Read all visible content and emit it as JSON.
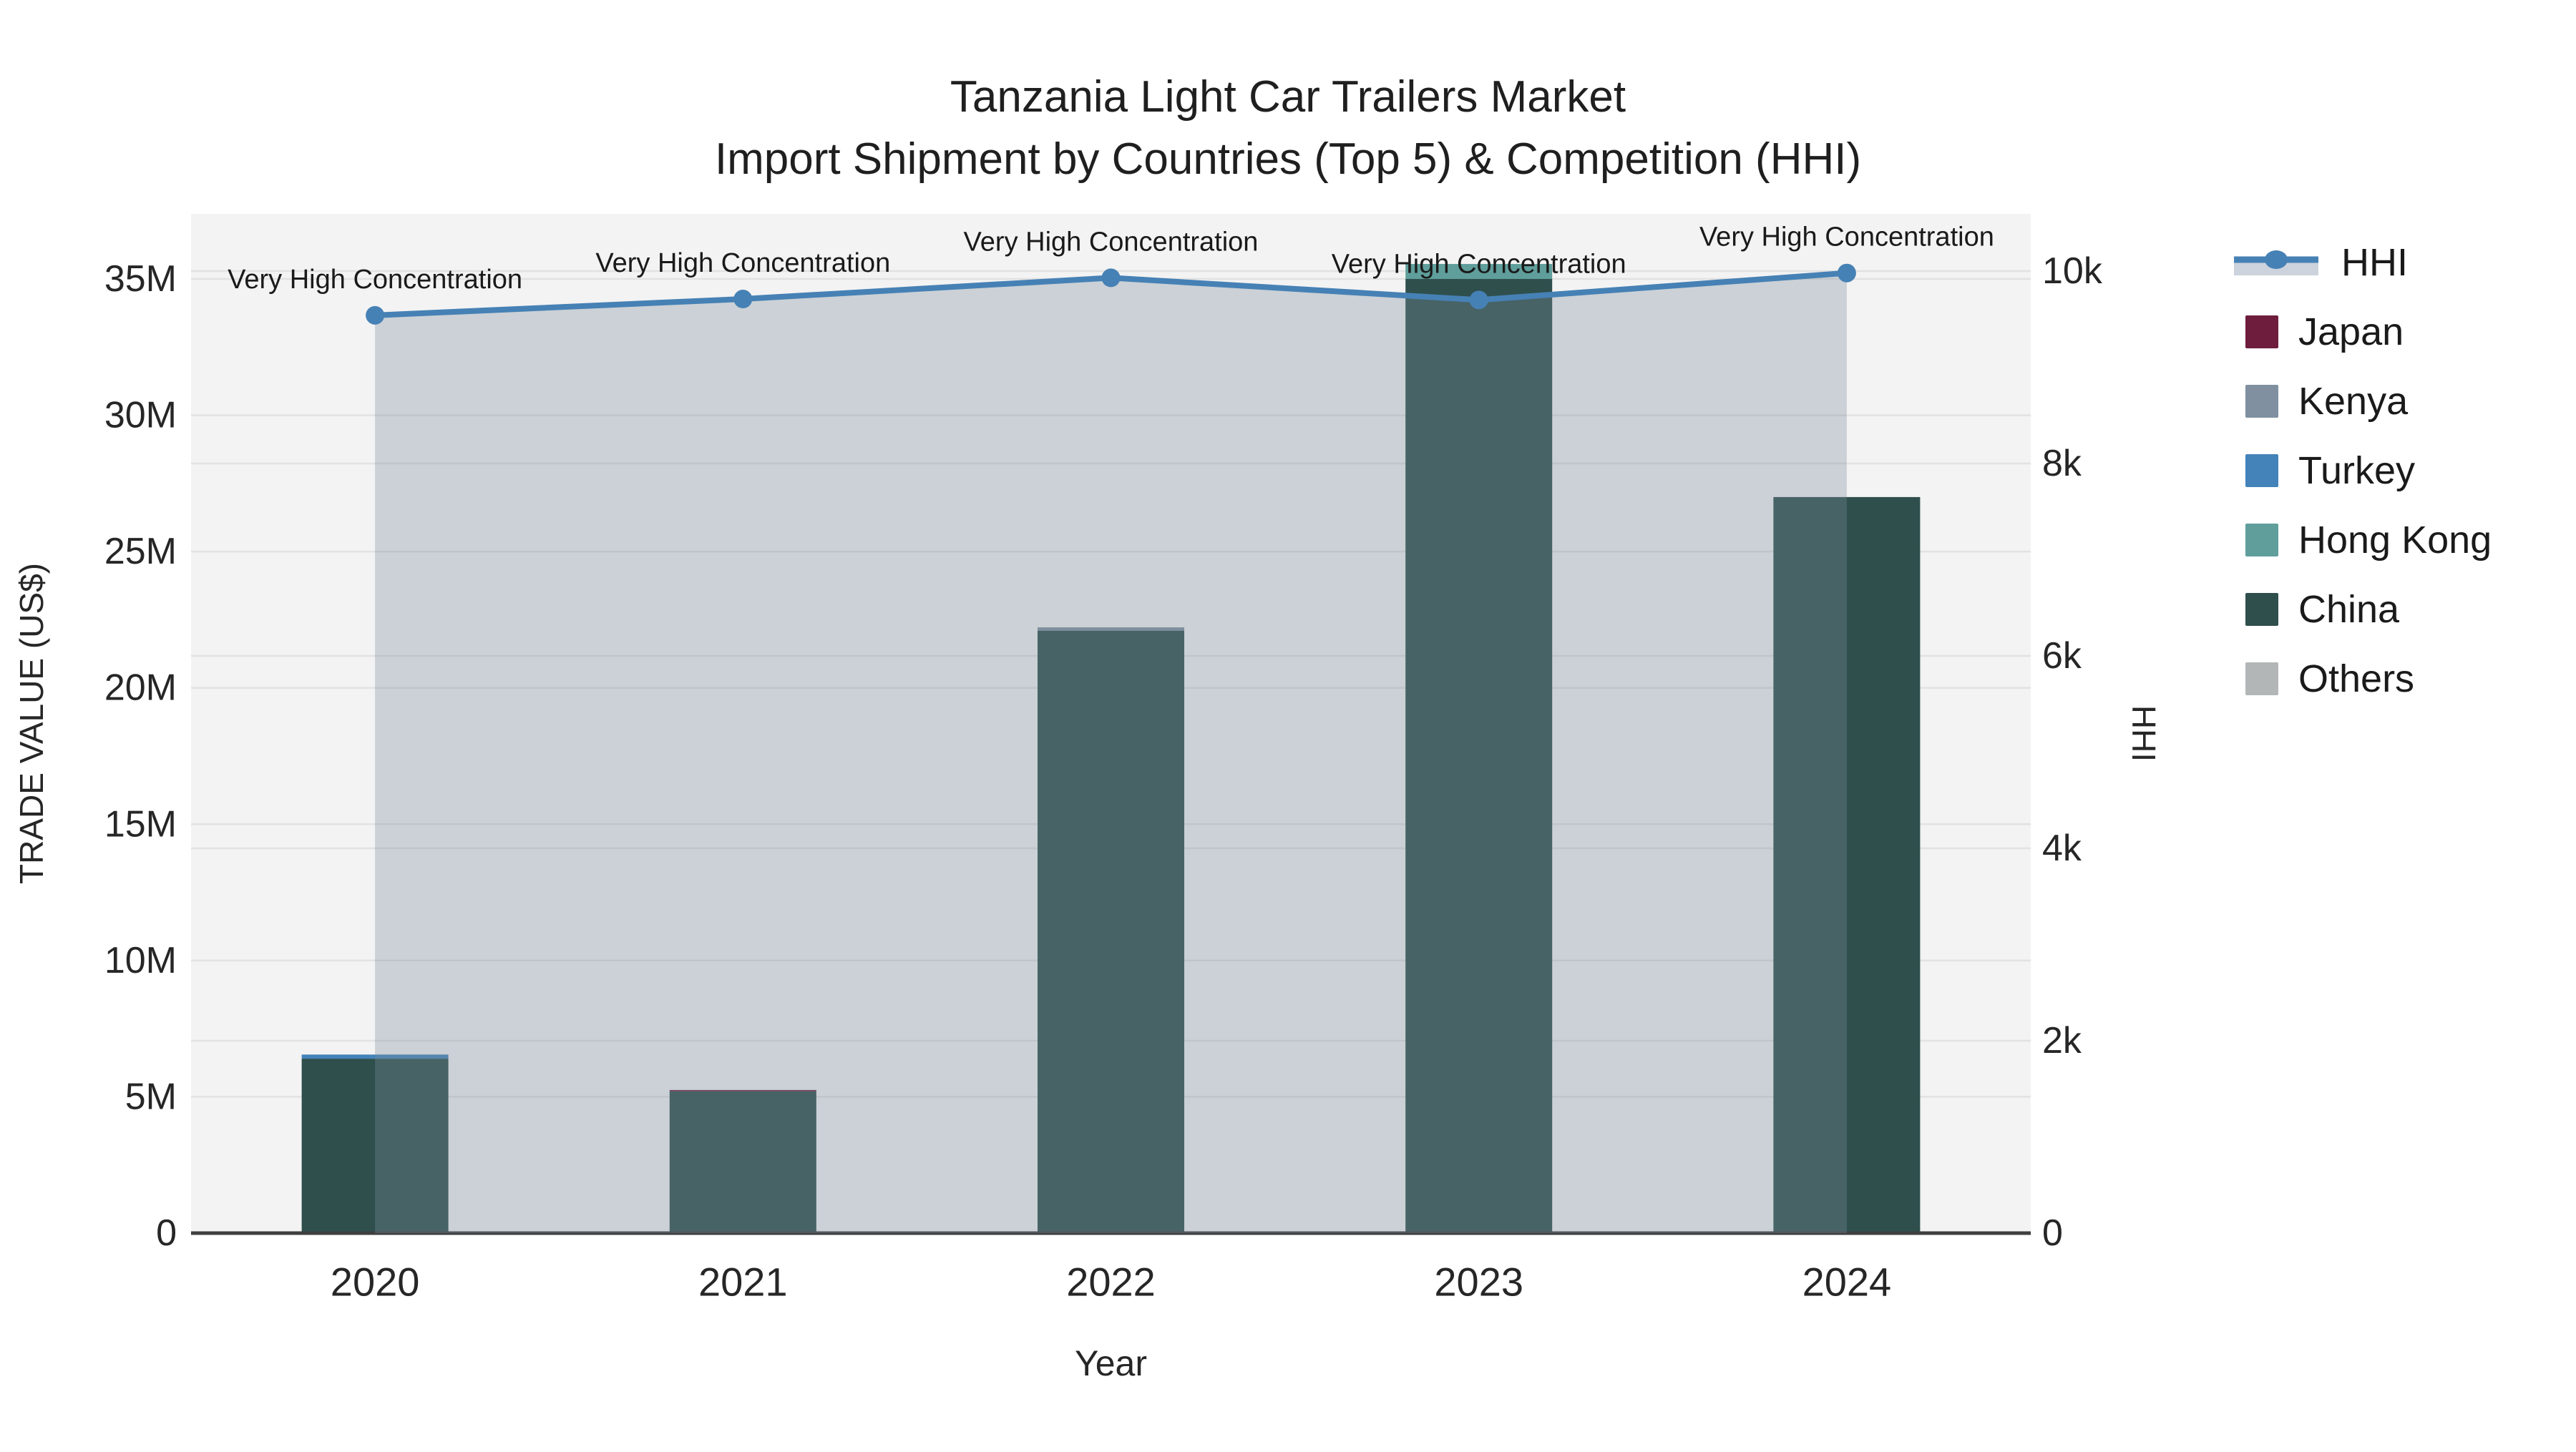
{
  "title": {
    "line1": "Tanzania Light Car Trailers Market",
    "line2": "Import Shipment by Countries (Top 5) & Competition (HHI)"
  },
  "colors": {
    "background": "#ffffff",
    "plot_bg": "#f3f3f3",
    "grid": "#e2e2e2",
    "axis_line": "#3f3f3f",
    "tick_text": "#262626",
    "annotation_text": "#1a1a1a",
    "hhi_line": "#4681b5",
    "hhi_fill": "rgba(120,140,155,0.33)",
    "hhi_band_swatch": "#ccd3dc"
  },
  "chart_data": {
    "type": "combo: stacked-bar + line(area) dual axis",
    "categories": [
      "2020",
      "2021",
      "2022",
      "2023",
      "2024"
    ],
    "bar_unit": "US$",
    "series": [
      {
        "name": "Japan",
        "color": "#6f1d3d",
        "values": [
          0,
          50000,
          0,
          0,
          0
        ]
      },
      {
        "name": "Kenya",
        "color": "#8090a0",
        "values": [
          0,
          0,
          120000,
          0,
          0
        ]
      },
      {
        "name": "Turkey",
        "color": "#4383b9",
        "values": [
          150000,
          0,
          0,
          0,
          0
        ]
      },
      {
        "name": "Hong Kong",
        "color": "#5f9e9b",
        "values": [
          0,
          0,
          0,
          550000,
          0
        ]
      },
      {
        "name": "China",
        "color": "#2f4f4d",
        "values": [
          6400000,
          5200000,
          22100000,
          35000000,
          27000000
        ]
      },
      {
        "name": "Others",
        "color": "#b3b6b7",
        "values": [
          0,
          0,
          0,
          0,
          0
        ]
      }
    ],
    "stack_order_bottom_to_top": [
      "China",
      "Hong Kong",
      "Turkey",
      "Kenya",
      "Japan",
      "Others"
    ],
    "line_series": {
      "name": "HHI",
      "values": [
        9540,
        9710,
        9930,
        9700,
        9980
      ]
    },
    "annotations": [
      "Very High Concentration",
      "Very High Concentration",
      "Very High Concentration",
      "Very High Concentration",
      "Very High Concentration"
    ],
    "x_axis": {
      "title": "Year"
    },
    "y_left": {
      "title": "TRADE VALUE (US$)",
      "ticks": [
        {
          "label": "0",
          "value": 0
        },
        {
          "label": "5M",
          "value": 5000000
        },
        {
          "label": "10M",
          "value": 10000000
        },
        {
          "label": "15M",
          "value": 15000000
        },
        {
          "label": "20M",
          "value": 20000000
        },
        {
          "label": "25M",
          "value": 25000000
        },
        {
          "label": "30M",
          "value": 30000000
        },
        {
          "label": "35M",
          "value": 35000000
        }
      ]
    },
    "y_right": {
      "title": "HHI",
      "ticks": [
        {
          "label": "0",
          "value": 0
        },
        {
          "label": "2k",
          "value": 2000
        },
        {
          "label": "4k",
          "value": 4000
        },
        {
          "label": "6k",
          "value": 6000
        },
        {
          "label": "8k",
          "value": 8000
        },
        {
          "label": "10k",
          "value": 10000
        }
      ],
      "max": 10000
    },
    "legend_order": [
      "HHI",
      "Japan",
      "Kenya",
      "Turkey",
      "Hong Kong",
      "China",
      "Others"
    ]
  }
}
